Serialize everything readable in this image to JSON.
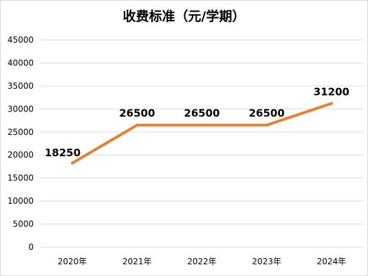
{
  "chart_data": {
    "type": "line",
    "title": "收费标准（元/学期）",
    "xlabel": "",
    "ylabel": "",
    "categories": [
      "2020年",
      "2021年",
      "2022年",
      "2023年",
      "2024年"
    ],
    "series": [
      {
        "values": [
          18250,
          26500,
          26500,
          26500,
          31200
        ]
      }
    ],
    "data_labels": [
      "18250",
      "26500",
      "26500",
      "26500",
      "31200"
    ],
    "yticks": [
      "0",
      "5000",
      "10000",
      "15000",
      "20000",
      "25000",
      "30000",
      "35000",
      "40000",
      "45000"
    ],
    "ylim": [
      0,
      45000
    ],
    "grid": true,
    "legend": "none",
    "line_color": "#ED7D31",
    "grid_color": "#d9d9d9"
  }
}
